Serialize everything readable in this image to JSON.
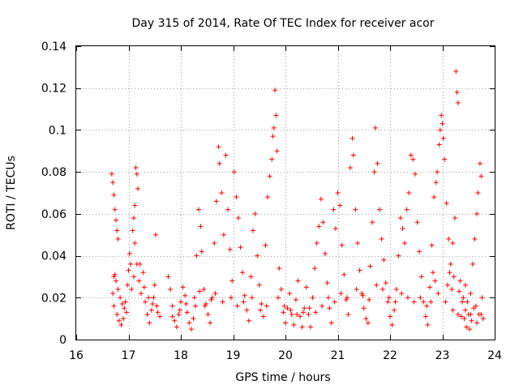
{
  "chart_data": {
    "type": "scatter",
    "title": "Day 315 of 2014, Rate Of TEC Index for receiver acor",
    "xlabel": "GPS time / hours",
    "ylabel": "ROTI / TECUs",
    "xlim": [
      16,
      24
    ],
    "ylim": [
      0,
      0.14
    ],
    "xticks": [
      16,
      17,
      18,
      19,
      20,
      21,
      22,
      23,
      24
    ],
    "yticks": [
      0,
      0.02,
      0.04,
      0.06,
      0.08,
      0.1,
      0.12,
      0.14
    ],
    "xtick_labels": [
      "16",
      "17",
      "18",
      "19",
      "20",
      "21",
      "22",
      "23",
      "24"
    ],
    "ytick_labels": [
      "0",
      "0.02",
      "0.04",
      "0.06",
      "0.08",
      "0.1",
      "0.12",
      "0.14"
    ],
    "grid": true,
    "marker": "+",
    "color": "#ff0000",
    "series": [
      {
        "name": "ROTI",
        "points": [
          [
            16.68,
            0.079
          ],
          [
            16.7,
            0.075
          ],
          [
            16.72,
            0.069
          ],
          [
            16.74,
            0.062
          ],
          [
            16.76,
            0.057
          ],
          [
            16.78,
            0.052
          ],
          [
            16.8,
            0.048
          ],
          [
            16.74,
            0.031
          ],
          [
            16.7,
            0.022
          ],
          [
            16.72,
            0.016
          ],
          [
            16.78,
            0.012
          ],
          [
            16.82,
            0.009
          ],
          [
            16.86,
            0.007
          ],
          [
            16.9,
            0.01
          ],
          [
            16.94,
            0.018
          ],
          [
            16.98,
            0.026
          ],
          [
            17.0,
            0.033
          ],
          [
            17.02,
            0.041
          ],
          [
            17.04,
            0.036
          ],
          [
            17.06,
            0.024
          ],
          [
            17.08,
            0.052
          ],
          [
            17.1,
            0.058
          ],
          [
            17.12,
            0.064
          ],
          [
            17.14,
            0.082
          ],
          [
            17.16,
            0.079
          ],
          [
            17.18,
            0.072
          ],
          [
            17.12,
            0.046
          ],
          [
            17.16,
            0.036
          ],
          [
            17.2,
            0.028
          ],
          [
            17.24,
            0.022
          ],
          [
            17.28,
            0.032
          ],
          [
            17.32,
            0.018
          ],
          [
            17.36,
            0.012
          ],
          [
            17.4,
            0.008
          ],
          [
            17.44,
            0.014
          ],
          [
            17.48,
            0.02
          ],
          [
            17.52,
            0.05
          ],
          [
            17.5,
            0.026
          ],
          [
            17.54,
            0.016
          ],
          [
            17.6,
            0.011
          ],
          [
            17.76,
            0.03
          ],
          [
            17.8,
            0.024
          ],
          [
            17.84,
            0.016
          ],
          [
            17.88,
            0.009
          ],
          [
            17.92,
            0.006
          ],
          [
            17.96,
            0.012
          ],
          [
            18.0,
            0.018
          ],
          [
            18.04,
            0.025
          ],
          [
            18.08,
            0.021
          ],
          [
            18.12,
            0.013
          ],
          [
            18.16,
            0.008
          ],
          [
            18.2,
            0.005
          ],
          [
            18.24,
            0.01
          ],
          [
            18.28,
            0.016
          ],
          [
            18.3,
            0.04
          ],
          [
            18.34,
            0.062
          ],
          [
            18.38,
            0.054
          ],
          [
            18.4,
            0.042
          ],
          [
            18.44,
            0.024
          ],
          [
            18.48,
            0.017
          ],
          [
            18.52,
            0.012
          ],
          [
            18.56,
            0.008
          ],
          [
            18.6,
            0.02
          ],
          [
            18.64,
            0.046
          ],
          [
            18.68,
            0.066
          ],
          [
            18.72,
            0.092
          ],
          [
            18.74,
            0.084
          ],
          [
            18.78,
            0.07
          ],
          [
            18.82,
            0.05
          ],
          [
            18.86,
            0.088
          ],
          [
            18.9,
            0.062
          ],
          [
            18.94,
            0.043
          ],
          [
            18.98,
            0.028
          ],
          [
            19.02,
            0.08
          ],
          [
            19.06,
            0.068
          ],
          [
            19.1,
            0.058
          ],
          [
            19.14,
            0.044
          ],
          [
            19.18,
            0.032
          ],
          [
            19.22,
            0.021
          ],
          [
            19.26,
            0.014
          ],
          [
            19.3,
            0.009
          ],
          [
            19.34,
            0.03
          ],
          [
            19.38,
            0.052
          ],
          [
            19.42,
            0.06
          ],
          [
            19.46,
            0.04
          ],
          [
            19.5,
            0.026
          ],
          [
            19.54,
            0.017
          ],
          [
            19.58,
            0.011
          ],
          [
            19.62,
            0.045
          ],
          [
            19.66,
            0.068
          ],
          [
            19.7,
            0.078
          ],
          [
            19.74,
            0.086
          ],
          [
            19.76,
            0.097
          ],
          [
            19.78,
            0.101
          ],
          [
            19.8,
            0.119
          ],
          [
            19.82,
            0.107
          ],
          [
            19.84,
            0.09
          ],
          [
            19.88,
            0.034
          ],
          [
            19.92,
            0.024
          ],
          [
            19.96,
            0.013
          ],
          [
            20.0,
            0.008
          ],
          [
            20.04,
            0.015
          ],
          [
            20.08,
            0.022
          ],
          [
            20.12,
            0.012
          ],
          [
            20.16,
            0.007
          ],
          [
            20.2,
            0.019
          ],
          [
            20.24,
            0.028
          ],
          [
            20.28,
            0.011
          ],
          [
            20.32,
            0.006
          ],
          [
            20.36,
            0.015
          ],
          [
            20.4,
            0.025
          ],
          [
            20.44,
            0.012
          ],
          [
            20.48,
            0.006
          ],
          [
            20.52,
            0.02
          ],
          [
            20.56,
            0.034
          ],
          [
            20.6,
            0.046
          ],
          [
            20.64,
            0.054
          ],
          [
            20.68,
            0.067
          ],
          [
            20.72,
            0.056
          ],
          [
            20.76,
            0.041
          ],
          [
            20.8,
            0.027
          ],
          [
            20.84,
            0.015
          ],
          [
            20.88,
            0.008
          ],
          [
            20.92,
            0.062
          ],
          [
            20.96,
            0.053
          ],
          [
            21.0,
            0.07
          ],
          [
            21.04,
            0.064
          ],
          [
            21.08,
            0.045
          ],
          [
            21.12,
            0.031
          ],
          [
            21.16,
            0.019
          ],
          [
            21.2,
            0.012
          ],
          [
            21.24,
            0.082
          ],
          [
            21.28,
            0.096
          ],
          [
            21.3,
            0.088
          ],
          [
            21.34,
            0.062
          ],
          [
            21.38,
            0.046
          ],
          [
            21.42,
            0.033
          ],
          [
            21.46,
            0.022
          ],
          [
            21.5,
            0.015
          ],
          [
            21.54,
            0.01
          ],
          [
            21.58,
            0.008
          ],
          [
            21.62,
            0.035
          ],
          [
            21.66,
            0.056
          ],
          [
            21.7,
            0.08
          ],
          [
            21.72,
            0.101
          ],
          [
            21.76,
            0.084
          ],
          [
            21.8,
            0.062
          ],
          [
            21.84,
            0.048
          ],
          [
            21.88,
            0.038
          ],
          [
            21.92,
            0.027
          ],
          [
            21.96,
            0.018
          ],
          [
            22.0,
            0.011
          ],
          [
            22.04,
            0.007
          ],
          [
            22.08,
            0.014
          ],
          [
            22.12,
            0.024
          ],
          [
            22.16,
            0.04
          ],
          [
            22.2,
            0.058
          ],
          [
            22.24,
            0.053
          ],
          [
            22.28,
            0.046
          ],
          [
            22.32,
            0.062
          ],
          [
            22.36,
            0.07
          ],
          [
            22.4,
            0.088
          ],
          [
            22.44,
            0.086
          ],
          [
            22.48,
            0.079
          ],
          [
            22.52,
            0.056
          ],
          [
            22.56,
            0.042
          ],
          [
            22.6,
            0.03
          ],
          [
            22.64,
            0.018
          ],
          [
            22.68,
            0.011
          ],
          [
            22.72,
            0.007
          ],
          [
            22.76,
            0.025
          ],
          [
            22.8,
            0.045
          ],
          [
            22.84,
            0.068
          ],
          [
            22.88,
            0.075
          ],
          [
            22.9,
            0.08
          ],
          [
            22.94,
            0.093
          ],
          [
            22.96,
            0.1
          ],
          [
            22.98,
            0.107
          ],
          [
            23.0,
            0.103
          ],
          [
            23.02,
            0.096
          ],
          [
            23.04,
            0.086
          ],
          [
            23.08,
            0.065
          ],
          [
            23.12,
            0.048
          ],
          [
            23.16,
            0.036
          ],
          [
            23.2,
            0.046
          ],
          [
            23.24,
            0.058
          ],
          [
            23.26,
            0.128
          ],
          [
            23.28,
            0.118
          ],
          [
            23.3,
            0.113
          ],
          [
            23.34,
            0.028
          ],
          [
            23.38,
            0.018
          ],
          [
            23.42,
            0.01
          ],
          [
            23.46,
            0.006
          ],
          [
            23.5,
            0.012
          ],
          [
            23.54,
            0.022
          ],
          [
            23.58,
            0.036
          ],
          [
            23.62,
            0.048
          ],
          [
            23.66,
            0.06
          ],
          [
            23.68,
            0.07
          ],
          [
            23.72,
            0.084
          ],
          [
            23.74,
            0.078
          ],
          [
            23.76,
            0.02
          ],
          [
            23.7,
            0.012
          ],
          [
            23.66,
            0.008
          ],
          [
            23.6,
            0.015
          ],
          [
            23.56,
            0.009
          ],
          [
            23.52,
            0.005
          ],
          [
            23.48,
            0.018
          ],
          [
            23.44,
            0.026
          ],
          [
            23.4,
            0.02
          ],
          [
            23.36,
            0.011
          ],
          [
            23.32,
            0.023
          ],
          [
            23.22,
            0.03
          ],
          [
            23.18,
            0.024
          ],
          [
            23.14,
            0.032
          ],
          [
            23.1,
            0.026
          ],
          [
            23.06,
            0.018
          ],
          [
            22.92,
            0.022
          ],
          [
            22.86,
            0.028
          ],
          [
            22.82,
            0.032
          ],
          [
            16.72,
            0.03
          ],
          [
            16.76,
            0.028
          ],
          [
            16.8,
            0.024
          ],
          [
            16.84,
            0.02
          ],
          [
            16.88,
            0.017
          ],
          [
            16.92,
            0.015
          ],
          [
            16.96,
            0.013
          ],
          [
            17.1,
            0.03
          ],
          [
            17.22,
            0.036
          ],
          [
            17.3,
            0.025
          ],
          [
            17.38,
            0.02
          ],
          [
            17.46,
            0.017
          ],
          [
            17.56,
            0.013
          ],
          [
            17.84,
            0.011
          ],
          [
            17.98,
            0.014
          ],
          [
            18.1,
            0.017
          ],
          [
            18.26,
            0.02
          ],
          [
            18.36,
            0.023
          ],
          [
            18.46,
            0.016
          ],
          [
            18.58,
            0.019
          ],
          [
            18.66,
            0.022
          ],
          [
            18.8,
            0.018
          ],
          [
            18.96,
            0.02
          ],
          [
            19.08,
            0.016
          ],
          [
            19.2,
            0.018
          ],
          [
            19.36,
            0.02
          ],
          [
            19.52,
            0.014
          ],
          [
            19.64,
            0.016
          ],
          [
            19.86,
            0.02
          ],
          [
            19.98,
            0.016
          ],
          [
            20.1,
            0.014
          ],
          [
            20.22,
            0.012
          ],
          [
            20.34,
            0.013
          ],
          [
            20.46,
            0.015
          ],
          [
            20.58,
            0.013
          ],
          [
            20.7,
            0.016
          ],
          [
            20.82,
            0.02
          ],
          [
            20.94,
            0.018
          ],
          [
            21.06,
            0.022
          ],
          [
            21.18,
            0.02
          ],
          [
            21.36,
            0.024
          ],
          [
            21.48,
            0.021
          ],
          [
            21.6,
            0.019
          ],
          [
            21.74,
            0.026
          ],
          [
            21.86,
            0.024
          ],
          [
            21.98,
            0.02
          ],
          [
            22.1,
            0.018
          ],
          [
            22.22,
            0.022
          ],
          [
            22.34,
            0.02
          ],
          [
            22.46,
            0.018
          ],
          [
            22.58,
            0.02
          ],
          [
            22.7,
            0.016
          ],
          [
            22.78,
            0.018
          ],
          [
            23.2,
            0.014
          ],
          [
            23.3,
            0.012
          ],
          [
            23.44,
            0.014
          ],
          [
            23.54,
            0.012
          ],
          [
            23.64,
            0.016
          ],
          [
            23.74,
            0.012
          ],
          [
            23.78,
            0.01
          ]
        ]
      }
    ]
  }
}
